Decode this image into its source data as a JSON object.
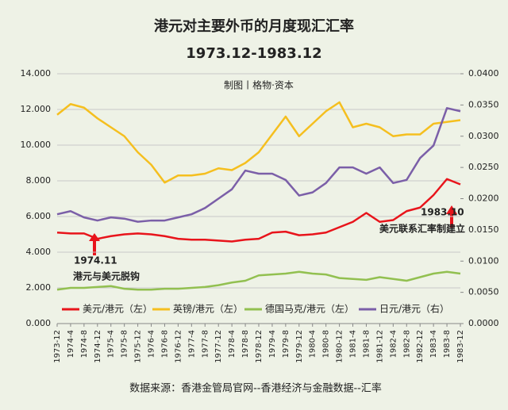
{
  "chart_data": {
    "type": "line",
    "title": "港元对主要外币的月度现汇汇率",
    "subtitle": "1973.12-1983.12",
    "credit": "制图丨格物·资本",
    "source": "数据来源：香港金管局官网--香港经济与金融数据--汇率",
    "annotations": [
      "1974.11",
      "港元与美元脱钩",
      "1983.10",
      "美元联系汇率制建立"
    ],
    "categories": [
      "1973-12",
      "1974-4",
      "1974-8",
      "1974-12",
      "1975-4",
      "1975-8",
      "1975-12",
      "1976-4",
      "1976-8",
      "1976-12",
      "1977-4",
      "1977-8",
      "1977-12",
      "1978-4",
      "1978-8",
      "1978-12",
      "1979-4",
      "1979-8",
      "1979-12",
      "1980-4",
      "1980-8",
      "1980-12",
      "1981-4",
      "1981-8",
      "1981-12",
      "1982-4",
      "1982-8",
      "1982-12",
      "1983-4",
      "1983-8",
      "1983-12"
    ],
    "series": [
      {
        "name": "美元/港元（左）",
        "color": "#e8141b",
        "axis": "y",
        "values": [
          5.1,
          5.05,
          5.05,
          4.75,
          4.9,
          5.0,
          5.05,
          5.0,
          4.9,
          4.75,
          4.7,
          4.7,
          4.65,
          4.6,
          4.7,
          4.75,
          5.1,
          5.15,
          4.95,
          5.0,
          5.1,
          5.4,
          5.7,
          6.2,
          5.7,
          5.8,
          6.3,
          6.5,
          7.2,
          8.1,
          7.8
        ]
      },
      {
        "name": "英镑/港元（左）",
        "color": "#f5bf1f",
        "axis": "y",
        "values": [
          11.7,
          12.3,
          12.1,
          11.5,
          11.0,
          10.5,
          9.6,
          8.9,
          7.9,
          8.3,
          8.3,
          8.4,
          8.7,
          8.6,
          9.0,
          9.6,
          10.6,
          11.6,
          10.5,
          11.2,
          11.9,
          12.4,
          11.0,
          11.2,
          11.0,
          10.5,
          10.6,
          10.6,
          11.2,
          11.3,
          11.4
        ]
      },
      {
        "name": "德国马克/港元（左）",
        "color": "#92c050",
        "axis": "y",
        "values": [
          1.9,
          2.0,
          2.0,
          2.05,
          2.1,
          1.95,
          1.9,
          1.9,
          1.95,
          1.95,
          2.0,
          2.05,
          2.15,
          2.3,
          2.4,
          2.7,
          2.75,
          2.8,
          2.9,
          2.8,
          2.75,
          2.55,
          2.5,
          2.45,
          2.6,
          2.5,
          2.4,
          2.6,
          2.8,
          2.9,
          2.8
        ]
      },
      {
        "name": "日元/港元（右）",
        "color": "#7b5fa8",
        "axis": "y2",
        "values": [
          0.0175,
          0.018,
          0.017,
          0.0165,
          0.017,
          0.0168,
          0.0163,
          0.0165,
          0.0165,
          0.017,
          0.0175,
          0.0185,
          0.02,
          0.0215,
          0.0245,
          0.024,
          0.024,
          0.023,
          0.0205,
          0.021,
          0.0225,
          0.025,
          0.025,
          0.024,
          0.025,
          0.0225,
          0.023,
          0.0265,
          0.0285,
          0.0345,
          0.034
        ]
      }
    ],
    "ylim": [
      0,
      14
    ],
    "yticks": [
      {
        "value": 0,
        "label": "0.000"
      },
      {
        "value": 2,
        "label": "2.000"
      },
      {
        "value": 4,
        "label": "4.000"
      },
      {
        "value": 6,
        "label": "6.000"
      },
      {
        "value": 8,
        "label": "8.000"
      },
      {
        "value": 10,
        "label": "10.000"
      },
      {
        "value": 12,
        "label": "12.000"
      },
      {
        "value": 14,
        "label": "14.000"
      }
    ],
    "y2lim": [
      0,
      0.04
    ],
    "y2ticks": [
      {
        "value": 0,
        "label": "0.0000"
      },
      {
        "value": 0.005,
        "label": "0.0050"
      },
      {
        "value": 0.01,
        "label": "0.0100"
      },
      {
        "value": 0.015,
        "label": "0.0150"
      },
      {
        "value": 0.02,
        "label": "0.0200"
      },
      {
        "value": 0.025,
        "label": "0.0250"
      },
      {
        "value": 0.03,
        "label": "0.0300"
      },
      {
        "value": 0.035,
        "label": "0.0350"
      },
      {
        "value": 0.04,
        "label": "0.0400"
      }
    ],
    "grid": true,
    "legend": "bottom"
  }
}
